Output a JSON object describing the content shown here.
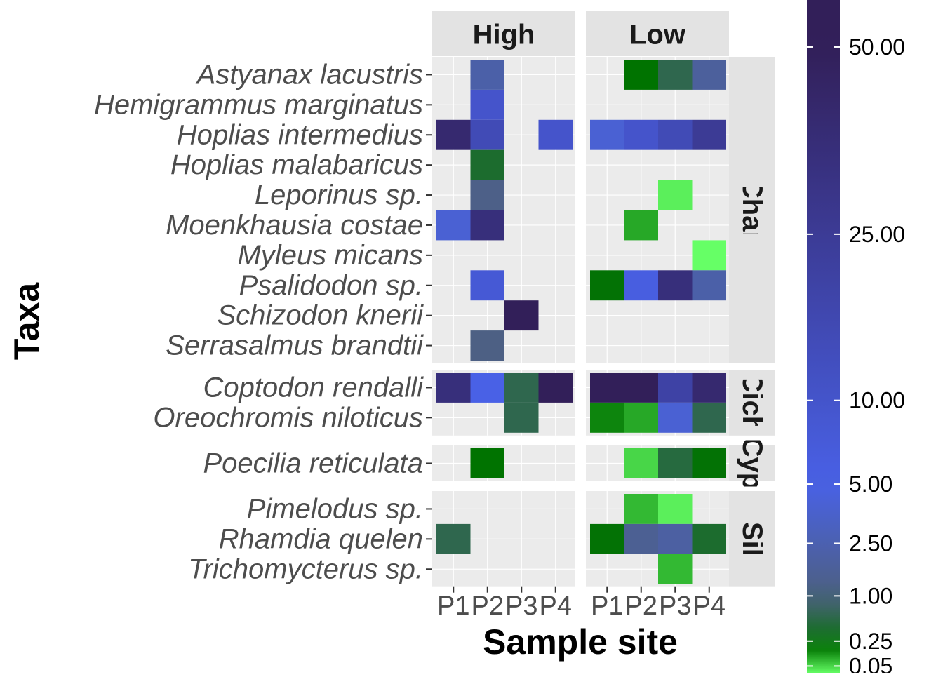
{
  "chart_data": {
    "type": "heatmap",
    "xlabel": "Sample site",
    "ylabel": "Taxa",
    "columns": [
      "High",
      "Low"
    ],
    "sites": [
      "P1",
      "P2",
      "P3",
      "P4"
    ],
    "rows": [
      {
        "label": "Char",
        "taxa": [
          "Astyanax lacustris",
          "Hemigrammus marginatus",
          "Hoplias intermedius",
          "Hoplias malabaricus",
          "Leporinus sp.",
          "Moenkhausia costae",
          "Myleus micans",
          "Psalidodon sp.",
          "Schizodon knerii",
          "Serrasalmus brandtii"
        ]
      },
      {
        "label": "Cich",
        "taxa": [
          "Coptodon rendalli",
          "Oreochromis niloticus"
        ]
      },
      {
        "label": "Cyp",
        "taxa": [
          "Poecilia reticulata"
        ]
      },
      {
        "label": "Sil",
        "taxa": [
          "Pimelodus sp.",
          "Rhamdia quelen",
          "Trichomycterus sp."
        ]
      }
    ],
    "cells": [
      {
        "taxon": "Astyanax lacustris",
        "column": "High",
        "site": "P2",
        "value": 2.2
      },
      {
        "taxon": "Astyanax lacustris",
        "column": "Low",
        "site": "P2",
        "value": 0.18
      },
      {
        "taxon": "Astyanax lacustris",
        "column": "Low",
        "site": "P3",
        "value": 0.6
      },
      {
        "taxon": "Astyanax lacustris",
        "column": "Low",
        "site": "P4",
        "value": 1.8
      },
      {
        "taxon": "Hemigrammus marginatus",
        "column": "High",
        "site": "P2",
        "value": 10
      },
      {
        "taxon": "Hoplias intermedius",
        "column": "High",
        "site": "P1",
        "value": 40
      },
      {
        "taxon": "Hoplias intermedius",
        "column": "High",
        "site": "P2",
        "value": 15
      },
      {
        "taxon": "Hoplias intermedius",
        "column": "High",
        "site": "P4",
        "value": 10
      },
      {
        "taxon": "Hoplias intermedius",
        "column": "Low",
        "site": "P1",
        "value": 4
      },
      {
        "taxon": "Hoplias intermedius",
        "column": "Low",
        "site": "P2",
        "value": 10
      },
      {
        "taxon": "Hoplias intermedius",
        "column": "Low",
        "site": "P3",
        "value": 15
      },
      {
        "taxon": "Hoplias intermedius",
        "column": "Low",
        "site": "P4",
        "value": 25
      },
      {
        "taxon": "Hoplias malabaricus",
        "column": "High",
        "site": "P2",
        "value": 0.4
      },
      {
        "taxon": "Leporinus sp.",
        "column": "High",
        "site": "P2",
        "value": 1.2
      },
      {
        "taxon": "Leporinus sp.",
        "column": "Low",
        "site": "P3",
        "value": 0.03
      },
      {
        "taxon": "Moenkhausia costae",
        "column": "High",
        "site": "P1",
        "value": 4
      },
      {
        "taxon": "Moenkhausia costae",
        "column": "High",
        "site": "P2",
        "value": 35
      },
      {
        "taxon": "Moenkhausia costae",
        "column": "Low",
        "site": "P2",
        "value": 0.1
      },
      {
        "taxon": "Myleus micans",
        "column": "Low",
        "site": "P4",
        "value": 0.02
      },
      {
        "taxon": "Psalidodon sp.",
        "column": "High",
        "site": "P2",
        "value": 8
      },
      {
        "taxon": "Psalidodon sp.",
        "column": "Low",
        "site": "P1",
        "value": 0.2
      },
      {
        "taxon": "Psalidodon sp.",
        "column": "Low",
        "site": "P2",
        "value": 6
      },
      {
        "taxon": "Psalidodon sp.",
        "column": "Low",
        "site": "P3",
        "value": 35
      },
      {
        "taxon": "Psalidodon sp.",
        "column": "Low",
        "site": "P4",
        "value": 2.2
      },
      {
        "taxon": "Schizodon knerii",
        "column": "High",
        "site": "P3",
        "value": 60
      },
      {
        "taxon": "Serrasalmus brandtii",
        "column": "High",
        "site": "P2",
        "value": 1.1
      },
      {
        "taxon": "Coptodon rendalli",
        "column": "High",
        "site": "P1",
        "value": 35
      },
      {
        "taxon": "Coptodon rendalli",
        "column": "High",
        "site": "P2",
        "value": 5
      },
      {
        "taxon": "Coptodon rendalli",
        "column": "High",
        "site": "P3",
        "value": 0.6
      },
      {
        "taxon": "Coptodon rendalli",
        "column": "High",
        "site": "P4",
        "value": 50
      },
      {
        "taxon": "Coptodon rendalli",
        "column": "Low",
        "site": "P1",
        "value": 60
      },
      {
        "taxon": "Coptodon rendalli",
        "column": "Low",
        "site": "P2",
        "value": 50
      },
      {
        "taxon": "Coptodon rendalli",
        "column": "Low",
        "site": "P3",
        "value": 20
      },
      {
        "taxon": "Coptodon rendalli",
        "column": "Low",
        "site": "P4",
        "value": 40
      },
      {
        "taxon": "Oreochromis niloticus",
        "column": "High",
        "site": "P3",
        "value": 0.6
      },
      {
        "taxon": "Oreochromis niloticus",
        "column": "Low",
        "site": "P1",
        "value": 0.15
      },
      {
        "taxon": "Oreochromis niloticus",
        "column": "Low",
        "site": "P2",
        "value": 0.1
      },
      {
        "taxon": "Oreochromis niloticus",
        "column": "Low",
        "site": "P3",
        "value": 4
      },
      {
        "taxon": "Oreochromis niloticus",
        "column": "Low",
        "site": "P4",
        "value": 0.6
      },
      {
        "taxon": "Poecilia reticulata",
        "column": "High",
        "site": "P2",
        "value": 0.18
      },
      {
        "taxon": "Poecilia reticulata",
        "column": "Low",
        "site": "P2",
        "value": 0.05
      },
      {
        "taxon": "Poecilia reticulata",
        "column": "Low",
        "site": "P3",
        "value": 0.5
      },
      {
        "taxon": "Poecilia reticulata",
        "column": "Low",
        "site": "P4",
        "value": 0.2
      },
      {
        "taxon": "Pimelodus sp.",
        "column": "Low",
        "site": "P2",
        "value": 0.08
      },
      {
        "taxon": "Pimelodus sp.",
        "column": "Low",
        "site": "P3",
        "value": 0.03
      },
      {
        "taxon": "Rhamdia quelen",
        "column": "High",
        "site": "P1",
        "value": 0.6
      },
      {
        "taxon": "Rhamdia quelen",
        "column": "Low",
        "site": "P1",
        "value": 0.2
      },
      {
        "taxon": "Rhamdia quelen",
        "column": "Low",
        "site": "P2",
        "value": 1.5
      },
      {
        "taxon": "Rhamdia quelen",
        "column": "Low",
        "site": "P3",
        "value": 2
      },
      {
        "taxon": "Rhamdia quelen",
        "column": "Low",
        "site": "P4",
        "value": 0.4
      },
      {
        "taxon": "Trichomycterus sp.",
        "column": "Low",
        "site": "P3",
        "value": 0.08
      }
    ],
    "legend": {
      "position": "right",
      "scale": "sqrt",
      "breaks": [
        "0.05",
        "0.25",
        "1.00",
        "2.50",
        "5.00",
        "10.00",
        "25.00",
        "50.00"
      ],
      "range": [
        0.02,
        60
      ],
      "colors": [
        "#66ff66",
        "#007300",
        "#4d6080",
        "#4961e6",
        "#321f59"
      ],
      "color_stops": [
        0.02,
        0.18,
        1.0,
        5.0,
        50.0
      ]
    },
    "panel_background": "#ebebeb",
    "strip_background": "#e3e3e3"
  }
}
